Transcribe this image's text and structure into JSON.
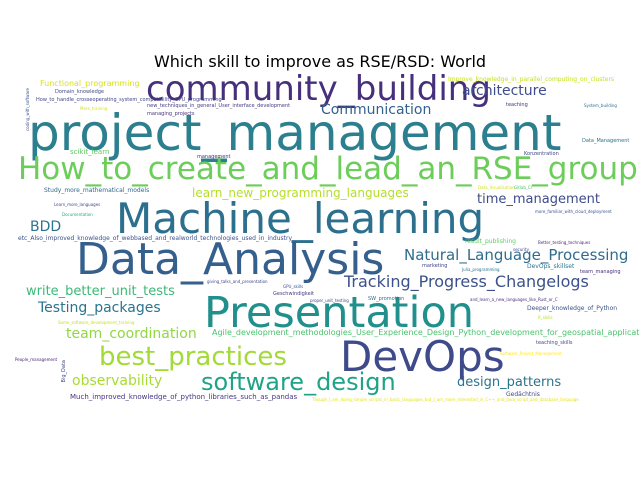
{
  "title": "Which skill to improve as RSE/RSD: World",
  "words": [
    {
      "text": "project_management",
      "color": "#2c7f8e"
    },
    {
      "text": "community_building",
      "color": "#46307c"
    },
    {
      "text": "How_to_create_and_lead_an_RSE_group",
      "color": "#6ccd5a"
    },
    {
      "text": "Machine_learning",
      "color": "#2d708e"
    },
    {
      "text": "Data_Analysis",
      "color": "#355f8d"
    },
    {
      "text": "Presentation",
      "color": "#21908d"
    },
    {
      "text": "DevOps",
      "color": "#3e4a89"
    },
    {
      "text": "best_practices",
      "color": "#a2da37"
    },
    {
      "text": "software_design",
      "color": "#20a386"
    },
    {
      "text": "Communication",
      "color": "#33628d"
    },
    {
      "text": "architecture",
      "color": "#3e4c8a"
    },
    {
      "text": "Tracking_Progress_Changelogs",
      "color": "#3b518b"
    },
    {
      "text": "Natural_Language_Processing",
      "color": "#2f6c8e"
    },
    {
      "text": "time_management",
      "color": "#3e4c8a"
    },
    {
      "text": "learn_new_programming_languages",
      "color": "#b5de2b"
    },
    {
      "text": "Testing_packages",
      "color": "#2c738e"
    },
    {
      "text": "write_better_unit_tests",
      "color": "#3aba76"
    },
    {
      "text": "team_coordination",
      "color": "#90d743"
    },
    {
      "text": "BDD",
      "color": "#2c738e"
    },
    {
      "text": "observability",
      "color": "#a8db34"
    },
    {
      "text": "design_patterns",
      "color": "#2c738e"
    },
    {
      "text": "Agile_development_methodologies_User_Experience_Design_Python_development_for_geospatial_applications",
      "color": "#4ac16d"
    },
    {
      "text": "Much_improved_knowledge_of_python_libraries_such_as_pandas",
      "color": "#453581"
    },
    {
      "text": "etc_Also_improved_knowledge_of_webbased_and_realworld_technologies_used_in_industry",
      "color": "#3b528b"
    },
    {
      "text": "Functional_programming",
      "color": "#d8e219"
    },
    {
      "text": "Improve_knowledge_in_parallel_computing_on_clusters",
      "color": "#c8e020"
    },
    {
      "text": "Study_more_mathematical_models",
      "color": "#31678e"
    },
    {
      "text": "scikit_learn",
      "color": "#5cc863"
    },
    {
      "text": "DevOps_skillset",
      "color": "#2a778e"
    },
    {
      "text": "Deeper_knowledge_of_Python",
      "color": "#3b528b"
    },
    {
      "text": "Domain_knowledge",
      "color": "#3e4a89"
    },
    {
      "text": "How_to_handle_crosseoperating_system_compatibility_GPU_programming",
      "color": "#414487"
    },
    {
      "text": "new_techniques_in_general_User_interface_development",
      "color": "#443983"
    },
    {
      "text": "managing_projects",
      "color": "#46337f"
    },
    {
      "text": "Data_Management",
      "color": "#2d708e"
    },
    {
      "text": "management",
      "color": "#482878"
    },
    {
      "text": "Konzentration",
      "color": "#404688"
    },
    {
      "text": "Learn_more_languages",
      "color": "#3f4788"
    },
    {
      "text": "Documentation",
      "color": "#25ab82"
    },
    {
      "text": "more_familiar_with_cloud_deployment",
      "color": "#3b528b"
    },
    {
      "text": "result_publishing",
      "color": "#5ec962"
    },
    {
      "text": "Better_testing_techniques",
      "color": "#472c7a"
    },
    {
      "text": "security",
      "color": "#3f4788"
    },
    {
      "text": "marketing",
      "color": "#414487"
    },
    {
      "text": "Julia_programming",
      "color": "#2d708e"
    },
    {
      "text": "team_managing",
      "color": "#472d7b"
    },
    {
      "text": "GPU_skills",
      "color": "#3b528b"
    },
    {
      "text": "Geschwindigkeit",
      "color": "#443983"
    },
    {
      "text": "proper_unit_testing",
      "color": "#3e4989"
    },
    {
      "text": "SW_promotion",
      "color": "#2c738e"
    },
    {
      "text": "and_learn_a_new_languages_like_Rust_or_C",
      "color": "#472c7a"
    },
    {
      "text": "R_skills",
      "color": "#b5de2b"
    },
    {
      "text": "giving_talks_and_presentation",
      "color": "#3e4989"
    },
    {
      "text": "Some_software_development_training",
      "color": "#c2df23"
    },
    {
      "text": "People_management",
      "color": "#482475"
    },
    {
      "text": "Big_Data",
      "color": "#3f4788"
    },
    {
      "text": "teaching_skills",
      "color": "#3e4c8a"
    },
    {
      "text": "Software_Project_Management",
      "color": "#fde725"
    },
    {
      "text": "Gedächtnis",
      "color": "#3e4a89"
    },
    {
      "text": "teaching",
      "color": "#472d7b"
    },
    {
      "text": "System_building",
      "color": "#2c738e"
    },
    {
      "text": "Data_Visualisation",
      "color": "#d2e21b"
    },
    {
      "text": "Gitlab_CI",
      "color": "#4ac16d"
    },
    {
      "text": "Though_I_am_doing_simple_scripts_in_basic_languages_but_I_am_more_interested_in_C++_and_Java_script_and_database_language",
      "color": "#e5e419"
    },
    {
      "text": "coding_with_software",
      "color": "#3b528b"
    },
    {
      "text": "More_training",
      "color": "#d8e219"
    }
  ]
}
